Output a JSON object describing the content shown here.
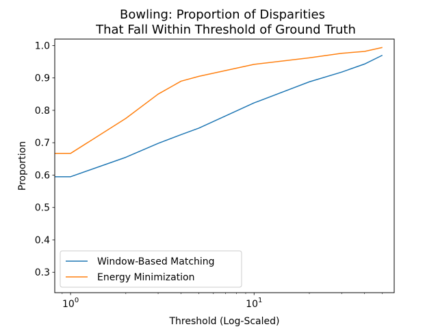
{
  "chart_data": {
    "type": "line",
    "title_line1": "Bowling: Proportion of Disparities",
    "title_line2": "That Fall Within Threshold of Ground Truth",
    "xlabel": "Threshold (Log-Scaled)",
    "ylabel": "Proportion",
    "xscale": "log",
    "xlim": [
      0.82,
      58
    ],
    "ylim": [
      0.237,
      1.02
    ],
    "x_major_ticks": [
      {
        "value": 1,
        "base": "10",
        "exp": "0"
      },
      {
        "value": 10,
        "base": "10",
        "exp": "1"
      }
    ],
    "y_ticks": [
      {
        "value": 0.3,
        "label": "0.3"
      },
      {
        "value": 0.4,
        "label": "0.4"
      },
      {
        "value": 0.5,
        "label": "0.5"
      },
      {
        "value": 0.6,
        "label": "0.6"
      },
      {
        "value": 0.7,
        "label": "0.7"
      },
      {
        "value": 0.8,
        "label": "0.8"
      },
      {
        "value": 0.9,
        "label": "0.9"
      },
      {
        "value": 1.0,
        "label": "1.0"
      }
    ],
    "grid": false,
    "legend_position": "lower-left",
    "series": [
      {
        "name": "Window-Based Matching",
        "color": "#1f77b4",
        "x": [
          0.5,
          1,
          2,
          3,
          4,
          5,
          10,
          20,
          30,
          40,
          50
        ],
        "y": [
          0.595,
          0.595,
          0.655,
          0.698,
          0.725,
          0.745,
          0.823,
          0.888,
          0.918,
          0.943,
          0.97
        ]
      },
      {
        "name": "Energy Minimization",
        "color": "#ff7f0e",
        "x": [
          0.5,
          1,
          2,
          3,
          4,
          5,
          10,
          20,
          30,
          40,
          50
        ],
        "y": [
          0.667,
          0.667,
          0.775,
          0.85,
          0.89,
          0.905,
          0.942,
          0.962,
          0.976,
          0.982,
          0.994
        ]
      }
    ]
  }
}
